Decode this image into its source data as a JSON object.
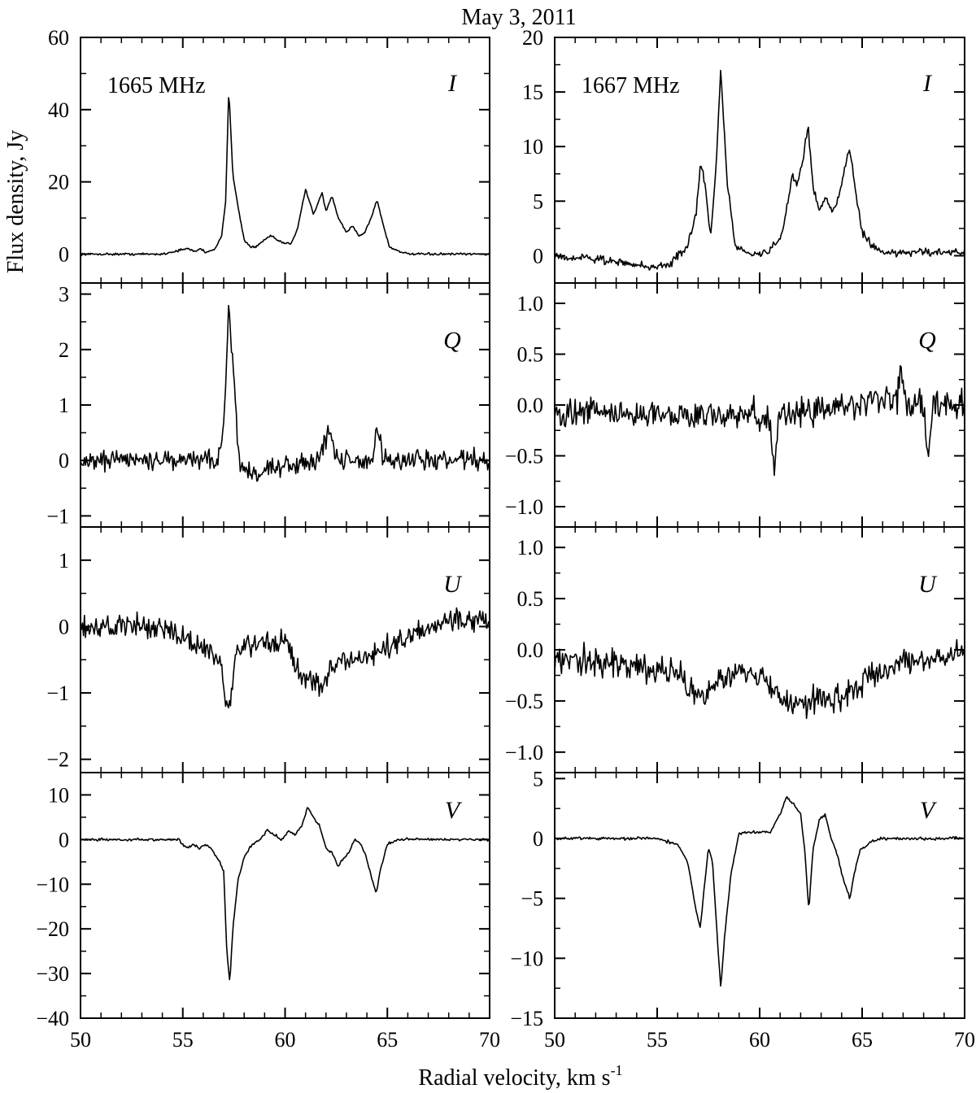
{
  "title": "May 3, 2011",
  "xlabel": {
    "main": "Radial velocity, km s",
    "sup": "-1"
  },
  "ylabel": "Flux density, Jy",
  "chart_data": [
    {
      "type": "line",
      "frequency": "1665 MHz",
      "stokes": "I",
      "xlim": [
        50,
        70
      ],
      "ylim": [
        -8,
        60
      ],
      "xticks": [
        50,
        55,
        60,
        65,
        70
      ],
      "yticks": [
        0,
        20,
        40,
        60
      ],
      "noise": 0.3,
      "x": [
        50,
        54,
        55.2,
        55.6,
        55.9,
        56.1,
        56.6,
        56.9,
        57.1,
        57.25,
        57.45,
        57.7,
        58.0,
        58.3,
        58.6,
        59.0,
        59.3,
        59.6,
        59.9,
        60.3,
        60.6,
        61.0,
        61.4,
        61.8,
        62.0,
        62.3,
        62.6,
        63.0,
        63.3,
        63.6,
        63.9,
        64.2,
        64.5,
        64.8,
        65.1,
        65.5,
        66,
        70
      ],
      "y": [
        0,
        0,
        1.5,
        0.8,
        1.5,
        0.5,
        1.5,
        5,
        15,
        46,
        22,
        13,
        4,
        2,
        2,
        4,
        5,
        4,
        3,
        3,
        7,
        18,
        11,
        17,
        12,
        16,
        10,
        6,
        8,
        5,
        6,
        10,
        15,
        8,
        2,
        1,
        0,
        0
      ]
    },
    {
      "type": "line",
      "frequency": "1667 MHz",
      "stokes": "I",
      "xlim": [
        50,
        70
      ],
      "ylim": [
        -2.5,
        20
      ],
      "xticks": [
        50,
        55,
        60,
        65,
        70
      ],
      "yticks": [
        0,
        5,
        10,
        15,
        20
      ],
      "noise": 0.35,
      "x": [
        50,
        53,
        54.5,
        55.5,
        56.0,
        56.5,
        56.9,
        57.1,
        57.3,
        57.6,
        57.9,
        58.1,
        58.4,
        58.8,
        59.2,
        59.8,
        60.5,
        61.0,
        61.3,
        61.6,
        61.8,
        62.1,
        62.35,
        62.6,
        62.9,
        63.2,
        63.5,
        63.8,
        64.1,
        64.4,
        64.6,
        65.0,
        65.5,
        66,
        70
      ],
      "y": [
        0,
        -0.5,
        -1,
        -1,
        0,
        1,
        4,
        8.5,
        7,
        1.5,
        9,
        17.2,
        7,
        1,
        0.5,
        0,
        0.5,
        1.5,
        4,
        7.5,
        6.5,
        8.5,
        12,
        6.5,
        4,
        5.5,
        4,
        5,
        7.5,
        9.8,
        7,
        2,
        1,
        0.3,
        0.3
      ]
    },
    {
      "type": "line",
      "frequency": "",
      "stokes": "Q",
      "xlim": [
        50,
        70
      ],
      "ylim": [
        -1.2,
        3.2
      ],
      "xticks": [
        50,
        55,
        60,
        65,
        70
      ],
      "yticks": [
        -1,
        0,
        1,
        2,
        3
      ],
      "noise": 0.18,
      "x": [
        50,
        56.7,
        56.9,
        57.05,
        57.25,
        57.5,
        57.7,
        57.9,
        61.5,
        62.2,
        62.5,
        64.3,
        64.5,
        64.8,
        70
      ],
      "y": [
        0,
        0,
        0.2,
        1.0,
        2.8,
        1.5,
        0.1,
        -0.2,
        0,
        0.6,
        0,
        0,
        0.6,
        0,
        0
      ]
    },
    {
      "type": "line",
      "frequency": "",
      "stokes": "Q",
      "xlim": [
        50,
        70
      ],
      "ylim": [
        -1.2,
        1.2
      ],
      "xticks": [
        50,
        55,
        60,
        65,
        70
      ],
      "yticks": [
        -1.0,
        -0.5,
        0.0,
        0.5,
        1.0
      ],
      "noise": 0.14,
      "x": [
        50,
        60.5,
        60.7,
        60.9,
        66.7,
        66.9,
        67.1,
        68.0,
        68.2,
        68.4,
        70
      ],
      "y": [
        -0.08,
        -0.1,
        -0.75,
        -0.1,
        0.05,
        0.45,
        0,
        0,
        -0.6,
        0,
        0
      ]
    },
    {
      "type": "line",
      "frequency": "",
      "stokes": "U",
      "xlim": [
        50,
        70
      ],
      "ylim": [
        -2.2,
        1.5
      ],
      "xticks": [
        50,
        55,
        60,
        65,
        70
      ],
      "yticks": [
        -2,
        -1,
        0,
        1
      ],
      "noise": 0.17,
      "x": [
        50,
        54,
        56.5,
        56.9,
        57.1,
        57.3,
        57.6,
        58,
        60,
        60.7,
        61.2,
        61.8,
        62.3,
        63,
        64,
        65,
        66.5,
        68,
        70
      ],
      "y": [
        0,
        0,
        -0.4,
        -0.6,
        -1.2,
        -1.2,
        -0.5,
        -0.3,
        -0.2,
        -0.7,
        -0.8,
        -0.9,
        -0.6,
        -0.5,
        -0.5,
        -0.3,
        -0.1,
        0.1,
        0.1
      ]
    },
    {
      "type": "line",
      "frequency": "",
      "stokes": "U",
      "xlim": [
        50,
        70
      ],
      "ylim": [
        -1.2,
        1.2
      ],
      "xticks": [
        50,
        55,
        60,
        65,
        70
      ],
      "yticks": [
        -1.0,
        -0.5,
        0.0,
        0.5,
        1.0
      ],
      "noise": 0.14,
      "x": [
        50,
        54,
        56,
        57.2,
        58,
        59.5,
        60.5,
        61.5,
        62.3,
        63,
        64,
        65,
        67,
        70
      ],
      "y": [
        -0.1,
        -0.15,
        -0.25,
        -0.5,
        -0.3,
        -0.2,
        -0.35,
        -0.5,
        -0.55,
        -0.45,
        -0.5,
        -0.3,
        -0.15,
        0
      ]
    },
    {
      "type": "line",
      "frequency": "",
      "stokes": "V",
      "xlim": [
        50,
        70
      ],
      "ylim": [
        -40,
        15
      ],
      "xticks": [
        50,
        55,
        60,
        65,
        70
      ],
      "yticks": [
        -40,
        -30,
        -20,
        -10,
        0,
        10
      ],
      "noise": 0.3,
      "x": [
        50,
        54.8,
        55.2,
        55.5,
        55.8,
        56.1,
        56.4,
        56.8,
        57.0,
        57.15,
        57.3,
        57.45,
        57.7,
        58.0,
        58.4,
        58.8,
        59.1,
        59.5,
        59.8,
        60.2,
        60.5,
        60.8,
        61.1,
        61.4,
        61.7,
        62.0,
        62.3,
        62.6,
        62.9,
        63.1,
        63.4,
        63.7,
        63.9,
        64.2,
        64.45,
        64.7,
        65.0,
        65.5,
        70
      ],
      "y": [
        0,
        0,
        -2,
        -1,
        -2,
        -1,
        -2,
        -5,
        -7,
        -25,
        -32,
        -20,
        -9,
        -4,
        -1,
        0,
        2,
        1,
        0,
        2,
        1,
        3,
        7,
        5,
        3,
        -2,
        -3,
        -6,
        -4,
        -3,
        0,
        -1,
        -3,
        -8,
        -12,
        -6,
        -1,
        0,
        0
      ]
    },
    {
      "type": "line",
      "frequency": "",
      "stokes": "V",
      "xlim": [
        50,
        70
      ],
      "ylim": [
        -15,
        5.5
      ],
      "xticks": [
        50,
        55,
        60,
        65,
        70
      ],
      "yticks": [
        -15,
        -10,
        -5,
        0,
        5
      ],
      "noise": 0.12,
      "x": [
        50,
        55,
        56.0,
        56.5,
        56.9,
        57.1,
        57.3,
        57.5,
        57.7,
        58.0,
        58.1,
        58.3,
        58.6,
        59,
        60,
        60.5,
        61.0,
        61.3,
        61.6,
        62.0,
        62.2,
        62.4,
        62.6,
        62.9,
        63.2,
        63.5,
        63.8,
        64.1,
        64.4,
        64.6,
        64.9,
        65.5,
        66,
        70
      ],
      "y": [
        0,
        0,
        -0.5,
        -2,
        -6,
        -7.5,
        -4,
        -0.8,
        -2,
        -10,
        -12.5,
        -8,
        -3,
        0.5,
        0.5,
        0.5,
        2,
        3.5,
        3,
        2,
        -1,
        -6,
        -1,
        1.5,
        2,
        0,
        -1.5,
        -3.5,
        -5,
        -3,
        -1,
        -0.2,
        0,
        0
      ]
    }
  ]
}
